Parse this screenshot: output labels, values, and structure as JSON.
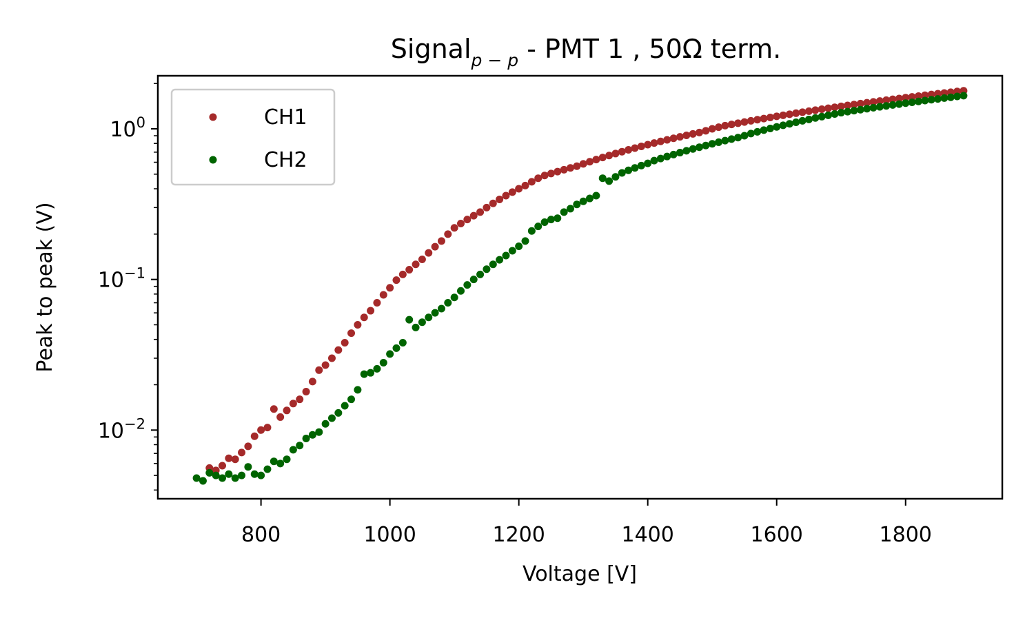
{
  "chart_data": {
    "type": "scatter",
    "title": {
      "main": "Signal",
      "subscript": "p − p",
      "rest": " - PMT 1 ,  50Ω term."
    },
    "xlabel": "Voltage [V]",
    "ylabel": "Peak to peak (V)",
    "xlim": [
      640,
      1950
    ],
    "ylim": [
      0.0035,
      2.25
    ],
    "yscale": "log",
    "x_ticks": [
      800,
      1000,
      1200,
      1400,
      1600,
      1800
    ],
    "x_tick_labels": [
      "800",
      "1000",
      "1200",
      "1400",
      "1600",
      "1800"
    ],
    "y_ticks": [
      0.01,
      0.1,
      1
    ],
    "y_tick_labels": [
      {
        "base": "10",
        "exp": "−2"
      },
      {
        "base": "10",
        "exp": "−1"
      },
      {
        "base": "10",
        "exp": "0"
      }
    ],
    "grid": false,
    "legend_position": "upper-left",
    "series": [
      {
        "name": "CH1",
        "color": "#a52a2a",
        "points": [
          [
            720,
            0.0056
          ],
          [
            730,
            0.0054
          ],
          [
            740,
            0.0058
          ],
          [
            750,
            0.0065
          ],
          [
            760,
            0.0064
          ],
          [
            770,
            0.0071
          ],
          [
            780,
            0.0078
          ],
          [
            790,
            0.0091
          ],
          [
            800,
            0.01
          ],
          [
            810,
            0.0104
          ],
          [
            820,
            0.0138
          ],
          [
            830,
            0.0122
          ],
          [
            840,
            0.0135
          ],
          [
            850,
            0.015
          ],
          [
            860,
            0.016
          ],
          [
            870,
            0.018
          ],
          [
            880,
            0.021
          ],
          [
            890,
            0.025
          ],
          [
            900,
            0.027
          ],
          [
            910,
            0.03
          ],
          [
            920,
            0.034
          ],
          [
            930,
            0.038
          ],
          [
            940,
            0.044
          ],
          [
            950,
            0.05
          ],
          [
            960,
            0.056
          ],
          [
            970,
            0.062
          ],
          [
            980,
            0.07
          ],
          [
            990,
            0.079
          ],
          [
            1000,
            0.088
          ],
          [
            1010,
            0.099
          ],
          [
            1020,
            0.108
          ],
          [
            1030,
            0.116
          ],
          [
            1040,
            0.126
          ],
          [
            1050,
            0.136
          ],
          [
            1060,
            0.15
          ],
          [
            1070,
            0.165
          ],
          [
            1080,
            0.18
          ],
          [
            1090,
            0.2
          ],
          [
            1100,
            0.22
          ],
          [
            1110,
            0.235
          ],
          [
            1120,
            0.25
          ],
          [
            1130,
            0.265
          ],
          [
            1140,
            0.28
          ],
          [
            1150,
            0.3
          ],
          [
            1160,
            0.32
          ],
          [
            1170,
            0.34
          ],
          [
            1180,
            0.36
          ],
          [
            1190,
            0.38
          ],
          [
            1200,
            0.4
          ],
          [
            1210,
            0.42
          ],
          [
            1220,
            0.445
          ],
          [
            1230,
            0.47
          ],
          [
            1240,
            0.49
          ],
          [
            1250,
            0.505
          ],
          [
            1260,
            0.52
          ],
          [
            1270,
            0.535
          ],
          [
            1280,
            0.55
          ],
          [
            1290,
            0.565
          ],
          [
            1300,
            0.585
          ],
          [
            1310,
            0.605
          ],
          [
            1320,
            0.625
          ],
          [
            1330,
            0.645
          ],
          [
            1340,
            0.665
          ],
          [
            1350,
            0.685
          ],
          [
            1360,
            0.705
          ],
          [
            1370,
            0.725
          ],
          [
            1380,
            0.745
          ],
          [
            1390,
            0.765
          ],
          [
            1400,
            0.785
          ],
          [
            1410,
            0.805
          ],
          [
            1420,
            0.825
          ],
          [
            1430,
            0.845
          ],
          [
            1440,
            0.865
          ],
          [
            1450,
            0.885
          ],
          [
            1460,
            0.905
          ],
          [
            1470,
            0.925
          ],
          [
            1480,
            0.945
          ],
          [
            1490,
            0.97
          ],
          [
            1500,
            1.0
          ],
          [
            1510,
            1.025
          ],
          [
            1520,
            1.05
          ],
          [
            1530,
            1.07
          ],
          [
            1540,
            1.09
          ],
          [
            1550,
            1.11
          ],
          [
            1560,
            1.13
          ],
          [
            1570,
            1.15
          ],
          [
            1580,
            1.17
          ],
          [
            1590,
            1.19
          ],
          [
            1600,
            1.21
          ],
          [
            1610,
            1.23
          ],
          [
            1620,
            1.25
          ],
          [
            1630,
            1.27
          ],
          [
            1640,
            1.29
          ],
          [
            1650,
            1.31
          ],
          [
            1660,
            1.33
          ],
          [
            1670,
            1.35
          ],
          [
            1680,
            1.37
          ],
          [
            1690,
            1.39
          ],
          [
            1700,
            1.41
          ],
          [
            1710,
            1.43
          ],
          [
            1720,
            1.45
          ],
          [
            1730,
            1.47
          ],
          [
            1740,
            1.49
          ],
          [
            1750,
            1.51
          ],
          [
            1760,
            1.53
          ],
          [
            1770,
            1.55
          ],
          [
            1780,
            1.57
          ],
          [
            1790,
            1.59
          ],
          [
            1800,
            1.61
          ],
          [
            1810,
            1.63
          ],
          [
            1820,
            1.65
          ],
          [
            1830,
            1.67
          ],
          [
            1840,
            1.69
          ],
          [
            1850,
            1.71
          ],
          [
            1860,
            1.73
          ],
          [
            1870,
            1.75
          ],
          [
            1880,
            1.77
          ],
          [
            1890,
            1.79
          ]
        ]
      },
      {
        "name": "CH2",
        "color": "#006400",
        "points": [
          [
            700,
            0.0048
          ],
          [
            710,
            0.0046
          ],
          [
            720,
            0.0052
          ],
          [
            730,
            0.005
          ],
          [
            740,
            0.0048
          ],
          [
            750,
            0.0051
          ],
          [
            760,
            0.0048
          ],
          [
            770,
            0.005
          ],
          [
            780,
            0.0057
          ],
          [
            790,
            0.0051
          ],
          [
            800,
            0.005
          ],
          [
            810,
            0.0055
          ],
          [
            820,
            0.0062
          ],
          [
            830,
            0.006
          ],
          [
            840,
            0.0064
          ],
          [
            850,
            0.0074
          ],
          [
            860,
            0.0079
          ],
          [
            870,
            0.0088
          ],
          [
            880,
            0.0093
          ],
          [
            890,
            0.0097
          ],
          [
            900,
            0.011
          ],
          [
            910,
            0.012
          ],
          [
            920,
            0.013
          ],
          [
            930,
            0.0145
          ],
          [
            940,
            0.016
          ],
          [
            950,
            0.0185
          ],
          [
            960,
            0.0235
          ],
          [
            970,
            0.024
          ],
          [
            980,
            0.0255
          ],
          [
            990,
            0.028
          ],
          [
            1000,
            0.032
          ],
          [
            1010,
            0.035
          ],
          [
            1020,
            0.038
          ],
          [
            1030,
            0.054
          ],
          [
            1040,
            0.048
          ],
          [
            1050,
            0.052
          ],
          [
            1060,
            0.056
          ],
          [
            1070,
            0.06
          ],
          [
            1080,
            0.064
          ],
          [
            1090,
            0.07
          ],
          [
            1100,
            0.076
          ],
          [
            1110,
            0.084
          ],
          [
            1120,
            0.092
          ],
          [
            1130,
            0.1
          ],
          [
            1140,
            0.108
          ],
          [
            1150,
            0.117
          ],
          [
            1160,
            0.126
          ],
          [
            1170,
            0.135
          ],
          [
            1180,
            0.144
          ],
          [
            1190,
            0.155
          ],
          [
            1200,
            0.166
          ],
          [
            1210,
            0.18
          ],
          [
            1220,
            0.21
          ],
          [
            1230,
            0.225
          ],
          [
            1240,
            0.24
          ],
          [
            1250,
            0.25
          ],
          [
            1260,
            0.255
          ],
          [
            1270,
            0.28
          ],
          [
            1280,
            0.295
          ],
          [
            1290,
            0.315
          ],
          [
            1300,
            0.33
          ],
          [
            1310,
            0.345
          ],
          [
            1320,
            0.36
          ],
          [
            1330,
            0.47
          ],
          [
            1340,
            0.45
          ],
          [
            1350,
            0.48
          ],
          [
            1360,
            0.51
          ],
          [
            1370,
            0.53
          ],
          [
            1380,
            0.55
          ],
          [
            1390,
            0.57
          ],
          [
            1400,
            0.59
          ],
          [
            1410,
            0.615
          ],
          [
            1420,
            0.635
          ],
          [
            1430,
            0.655
          ],
          [
            1440,
            0.675
          ],
          [
            1450,
            0.695
          ],
          [
            1460,
            0.715
          ],
          [
            1470,
            0.735
          ],
          [
            1480,
            0.755
          ],
          [
            1490,
            0.775
          ],
          [
            1500,
            0.795
          ],
          [
            1510,
            0.815
          ],
          [
            1520,
            0.835
          ],
          [
            1530,
            0.855
          ],
          [
            1540,
            0.875
          ],
          [
            1550,
            0.9
          ],
          [
            1560,
            0.93
          ],
          [
            1570,
            0.955
          ],
          [
            1580,
            0.98
          ],
          [
            1590,
            1.005
          ],
          [
            1600,
            1.03
          ],
          [
            1610,
            1.055
          ],
          [
            1620,
            1.08
          ],
          [
            1630,
            1.105
          ],
          [
            1640,
            1.13
          ],
          [
            1650,
            1.155
          ],
          [
            1660,
            1.18
          ],
          [
            1670,
            1.205
          ],
          [
            1680,
            1.23
          ],
          [
            1690,
            1.255
          ],
          [
            1700,
            1.28
          ],
          [
            1710,
            1.3
          ],
          [
            1720,
            1.32
          ],
          [
            1730,
            1.34
          ],
          [
            1740,
            1.36
          ],
          [
            1750,
            1.38
          ],
          [
            1760,
            1.4
          ],
          [
            1770,
            1.42
          ],
          [
            1780,
            1.44
          ],
          [
            1790,
            1.46
          ],
          [
            1800,
            1.48
          ],
          [
            1810,
            1.5
          ],
          [
            1820,
            1.52
          ],
          [
            1830,
            1.54
          ],
          [
            1840,
            1.56
          ],
          [
            1850,
            1.58
          ],
          [
            1860,
            1.6
          ],
          [
            1870,
            1.62
          ],
          [
            1880,
            1.64
          ],
          [
            1890,
            1.66
          ]
        ]
      }
    ]
  }
}
